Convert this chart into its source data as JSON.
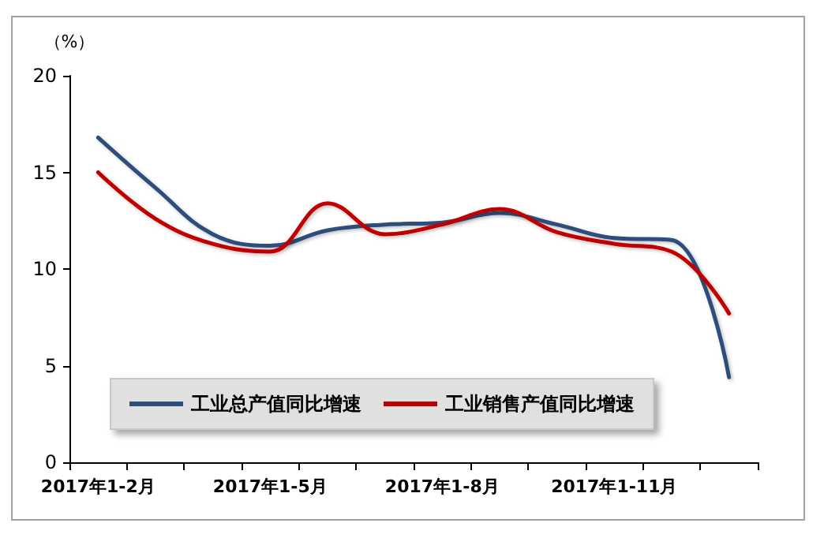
{
  "chart_data": {
    "type": "line",
    "ylabel": "（%）",
    "categories": [
      "2017年1-2月",
      null,
      null,
      "2017年1-5月",
      null,
      null,
      "2017年1-8月",
      null,
      null,
      "2017年1-11月",
      null,
      null
    ],
    "series": [
      {
        "name": "工业总产值同比增速",
        "color": "#2e4d7b",
        "values": [
          16.8,
          14.2,
          11.8,
          11.2,
          12.0,
          12.3,
          12.4,
          12.9,
          12.3,
          11.6,
          11.5,
          4.4
        ]
      },
      {
        "name": "工业销售产值同比增速",
        "color": "#c00000",
        "values": [
          15.0,
          12.6,
          11.3,
          10.9,
          13.4,
          11.8,
          12.3,
          13.1,
          11.9,
          11.3,
          10.9,
          7.7
        ]
      }
    ],
    "ylim": [
      0,
      20
    ],
    "yticks": [
      0,
      5,
      10,
      15,
      20
    ],
    "grid": false,
    "legend": "bottom left",
    "marker": "none",
    "line_style": "solid"
  }
}
